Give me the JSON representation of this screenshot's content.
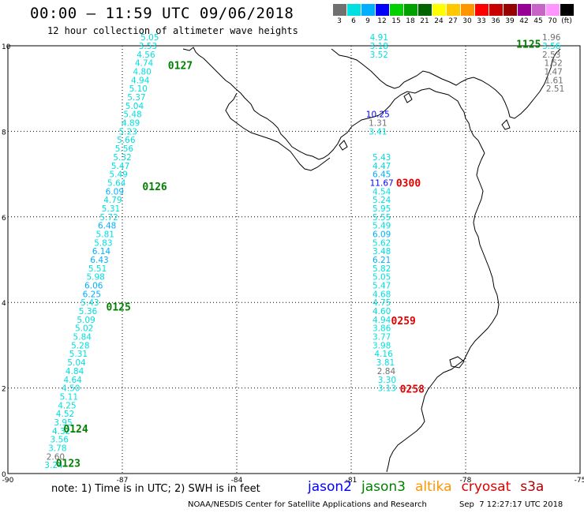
{
  "title": "00:00 – 11:59 UTC 09/06/2018",
  "subtitle": "12 hour collection of altimeter wave heights",
  "colorbar": {
    "colors": [
      "#707070",
      "#00e0e0",
      "#00b0ff",
      "#0000ff",
      "#00d000",
      "#00a000",
      "#006400",
      "#ffff00",
      "#ffc800",
      "#ff9600",
      "#ff0000",
      "#c80000",
      "#960000",
      "#960096",
      "#c864c8",
      "#ff96ff",
      "#000000"
    ],
    "labels": [
      "3",
      "6",
      "9",
      "12",
      "15",
      "18",
      "21",
      "24",
      "27",
      "30",
      "33",
      "36",
      "39",
      "42",
      "45",
      "70",
      "(ft)"
    ]
  },
  "axes": {
    "x_ticks": [
      "-90",
      "-87",
      "-84",
      "-81",
      "-78",
      "-75"
    ],
    "y_ticks": [
      "0",
      "2",
      "4",
      "6",
      "8",
      "10"
    ]
  },
  "chart_data": {
    "type": "scatter",
    "xlim": [
      -90,
      -75
    ],
    "ylim": [
      0,
      10
    ],
    "tracks": [
      {
        "name": "jason3",
        "points": [
          {
            "lon": -86.28,
            "lat": 10.2,
            "v": "5.05"
          },
          {
            "lon": -86.33,
            "lat": 10.0,
            "v": "3.53"
          },
          {
            "lon": -86.38,
            "lat": 9.8,
            "v": "4.56"
          },
          {
            "lon": -86.43,
            "lat": 9.6,
            "v": "4.74"
          },
          {
            "lon": -86.48,
            "lat": 9.4,
            "v": "4.80"
          },
          {
            "lon": -86.53,
            "lat": 9.2,
            "v": "4.94"
          },
          {
            "lon": -86.58,
            "lat": 9.0,
            "v": "5.10"
          },
          {
            "lon": -86.63,
            "lat": 8.8,
            "v": "5.37"
          },
          {
            "lon": -86.68,
            "lat": 8.6,
            "v": "5.04"
          },
          {
            "lon": -86.73,
            "lat": 8.4,
            "v": "5.48"
          },
          {
            "lon": -86.78,
            "lat": 8.2,
            "v": "4.89"
          },
          {
            "lon": -86.85,
            "lat": 8.0,
            "v": "5.23"
          },
          {
            "lon": -86.9,
            "lat": 7.8,
            "v": "5.66"
          },
          {
            "lon": -86.95,
            "lat": 7.6,
            "v": "5.56"
          },
          {
            "lon": -87.0,
            "lat": 7.4,
            "v": "5.32"
          },
          {
            "lon": -87.05,
            "lat": 7.2,
            "v": "5.47"
          },
          {
            "lon": -87.1,
            "lat": 7.0,
            "v": "5.49"
          },
          {
            "lon": -87.15,
            "lat": 6.8,
            "v": "5.64"
          },
          {
            "lon": -87.2,
            "lat": 6.6,
            "v": "6.09"
          },
          {
            "lon": -87.25,
            "lat": 6.4,
            "v": "4.79"
          },
          {
            "lon": -87.3,
            "lat": 6.2,
            "v": "5.31"
          },
          {
            "lon": -87.35,
            "lat": 6.0,
            "v": "5.72"
          },
          {
            "lon": -87.4,
            "lat": 5.8,
            "v": "6.48"
          },
          {
            "lon": -87.45,
            "lat": 5.6,
            "v": "5.81"
          },
          {
            "lon": -87.5,
            "lat": 5.4,
            "v": "5.83"
          },
          {
            "lon": -87.55,
            "lat": 5.2,
            "v": "6.14"
          },
          {
            "lon": -87.6,
            "lat": 5.0,
            "v": "6.43"
          },
          {
            "lon": -87.65,
            "lat": 4.8,
            "v": "5.51"
          },
          {
            "lon": -87.7,
            "lat": 4.6,
            "v": "5.98"
          },
          {
            "lon": -87.75,
            "lat": 4.4,
            "v": "6.06"
          },
          {
            "lon": -87.8,
            "lat": 4.2,
            "v": "6.25"
          },
          {
            "lon": -87.85,
            "lat": 4.0,
            "v": "5.43"
          },
          {
            "lon": -87.9,
            "lat": 3.8,
            "v": "5.36"
          },
          {
            "lon": -87.95,
            "lat": 3.6,
            "v": "5.09"
          },
          {
            "lon": -88.0,
            "lat": 3.4,
            "v": "5.02"
          },
          {
            "lon": -88.05,
            "lat": 3.2,
            "v": "5.84"
          },
          {
            "lon": -88.1,
            "lat": 3.0,
            "v": "5.28"
          },
          {
            "lon": -88.15,
            "lat": 2.8,
            "v": "5.31"
          },
          {
            "lon": -88.2,
            "lat": 2.6,
            "v": "5.04"
          },
          {
            "lon": -88.25,
            "lat": 2.4,
            "v": "4.84"
          },
          {
            "lon": -88.3,
            "lat": 2.2,
            "v": "4.64"
          },
          {
            "lon": -88.35,
            "lat": 2.0,
            "v": "4.50"
          },
          {
            "lon": -88.4,
            "lat": 1.8,
            "v": "5.11"
          },
          {
            "lon": -88.45,
            "lat": 1.6,
            "v": "4.25"
          },
          {
            "lon": -88.5,
            "lat": 1.4,
            "v": "4.52"
          },
          {
            "lon": -88.55,
            "lat": 1.2,
            "v": "3.95"
          },
          {
            "lon": -88.6,
            "lat": 1.0,
            "v": "4.32"
          },
          {
            "lon": -88.65,
            "lat": 0.8,
            "v": "3.56"
          },
          {
            "lon": -88.7,
            "lat": 0.6,
            "v": "3.78"
          },
          {
            "lon": -88.75,
            "lat": 0.4,
            "v": "2.60"
          },
          {
            "lon": -88.8,
            "lat": 0.2,
            "v": "3.24"
          }
        ]
      },
      {
        "name": "jason3",
        "points": [
          {
            "lon": -80.27,
            "lat": 10.2,
            "v": "4.91"
          },
          {
            "lon": -80.27,
            "lat": 10.0,
            "v": "3.18"
          },
          {
            "lon": -80.27,
            "lat": 9.8,
            "v": "3.52"
          },
          {
            "lon": -80.3,
            "lat": 8.4,
            "v": "10.25"
          },
          {
            "lon": -80.3,
            "lat": 8.2,
            "v": "1.31"
          },
          {
            "lon": -80.3,
            "lat": 8.0,
            "v": "3.41"
          },
          {
            "lon": -80.2,
            "lat": 7.4,
            "v": "5.43"
          },
          {
            "lon": -80.2,
            "lat": 7.2,
            "v": "4.47"
          },
          {
            "lon": -80.2,
            "lat": 7.0,
            "v": "6.45"
          },
          {
            "lon": -80.2,
            "lat": 6.8,
            "v": "11.67"
          },
          {
            "lon": -80.2,
            "lat": 6.6,
            "v": "4.54"
          },
          {
            "lon": -80.2,
            "lat": 6.4,
            "v": "5.24"
          },
          {
            "lon": -80.2,
            "lat": 6.2,
            "v": "5.95"
          },
          {
            "lon": -80.2,
            "lat": 6.0,
            "v": "5.55"
          },
          {
            "lon": -80.2,
            "lat": 5.8,
            "v": "5.49"
          },
          {
            "lon": -80.2,
            "lat": 5.6,
            "v": "6.09"
          },
          {
            "lon": -80.2,
            "lat": 5.4,
            "v": "5.62"
          },
          {
            "lon": -80.2,
            "lat": 5.2,
            "v": "3.48"
          },
          {
            "lon": -80.2,
            "lat": 5.0,
            "v": "6.21"
          },
          {
            "lon": -80.2,
            "lat": 4.8,
            "v": "5.82"
          },
          {
            "lon": -80.2,
            "lat": 4.6,
            "v": "5.05"
          },
          {
            "lon": -80.2,
            "lat": 4.4,
            "v": "5.47"
          },
          {
            "lon": -80.2,
            "lat": 4.2,
            "v": "4.68"
          },
          {
            "lon": -80.2,
            "lat": 4.0,
            "v": "4.75"
          },
          {
            "lon": -80.2,
            "lat": 3.8,
            "v": "4.60"
          },
          {
            "lon": -80.2,
            "lat": 3.6,
            "v": "4.94"
          },
          {
            "lon": -80.2,
            "lat": 3.4,
            "v": "3.86"
          },
          {
            "lon": -80.2,
            "lat": 3.2,
            "v": "3.77"
          },
          {
            "lon": -80.2,
            "lat": 3.0,
            "v": "3.98"
          },
          {
            "lon": -80.15,
            "lat": 2.8,
            "v": "4.16"
          },
          {
            "lon": -80.1,
            "lat": 2.6,
            "v": "3.81"
          },
          {
            "lon": -80.08,
            "lat": 2.4,
            "v": "2.84"
          },
          {
            "lon": -80.06,
            "lat": 2.2,
            "v": "3.30"
          },
          {
            "lon": -80.06,
            "lat": 2.0,
            "v": "3.13"
          }
        ]
      },
      {
        "name": "jason3",
        "points": [
          {
            "lon": -75.75,
            "lat": 10.2,
            "v": "1.96"
          },
          {
            "lon": -75.75,
            "lat": 10.0,
            "v": "3.56"
          },
          {
            "lon": -75.75,
            "lat": 9.8,
            "v": "2.53"
          },
          {
            "lon": -75.7,
            "lat": 9.6,
            "v": "1.52"
          },
          {
            "lon": -75.7,
            "lat": 9.4,
            "v": "1.47"
          },
          {
            "lon": -75.68,
            "lat": 9.2,
            "v": "1.61"
          },
          {
            "lon": -75.65,
            "lat": 9.0,
            "v": "2.51"
          }
        ]
      }
    ],
    "time_labels": [
      {
        "text": "0127",
        "lon": -85.48,
        "lat": 9.55,
        "color": "#008000"
      },
      {
        "text": "0126",
        "lon": -86.15,
        "lat": 6.72,
        "color": "#008000"
      },
      {
        "text": "0125",
        "lon": -87.1,
        "lat": 3.9,
        "color": "#008000"
      },
      {
        "text": "0124",
        "lon": -88.22,
        "lat": 1.05,
        "color": "#008000"
      },
      {
        "text": "0123",
        "lon": -88.42,
        "lat": 0.25,
        "color": "#008000"
      },
      {
        "text": "1125",
        "lon": -76.35,
        "lat": 10.05,
        "color": "#008000"
      },
      {
        "text": "0300",
        "lon": -79.5,
        "lat": 6.8,
        "color": "#e00000"
      },
      {
        "text": "0259",
        "lon": -79.63,
        "lat": 3.58,
        "color": "#e00000"
      },
      {
        "text": "0258",
        "lon": -79.4,
        "lat": 1.98,
        "color": "#e00000"
      }
    ]
  },
  "note": "note: 1) Time is in UTC; 2) SWH is in feet",
  "satellites": [
    {
      "name": "jason2",
      "color": "#0000ff"
    },
    {
      "name": "jason3",
      "color": "#008000"
    },
    {
      "name": "altika",
      "color": "#ff9600"
    },
    {
      "name": "cryosat",
      "color": "#e00000"
    },
    {
      "name": "s3a",
      "color": "#b00000"
    }
  ],
  "footer": {
    "credit": "NOAA/NESDIS Center for Satellite Applications and Research",
    "timestamp": "Sep  7 12:27:17 UTC 2018"
  }
}
